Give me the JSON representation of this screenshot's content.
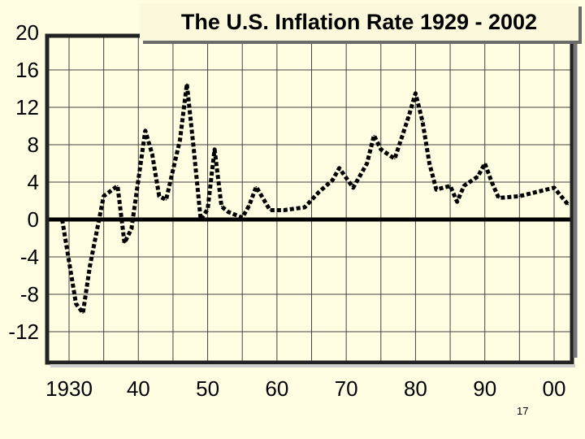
{
  "chart_data": {
    "type": "line",
    "title": "The U.S. Inflation Rate 1929 - 2002",
    "xlabel": "",
    "ylabel": "",
    "yticks": [
      "20",
      "16",
      "12",
      "8",
      "4",
      "0",
      "-4",
      "-8",
      "-12"
    ],
    "ytick_values": [
      20,
      16,
      12,
      8,
      4,
      0,
      -4,
      -8,
      -12
    ],
    "xticks": [
      "1930",
      "40",
      "50",
      "60",
      "70",
      "80",
      "90",
      "00"
    ],
    "xtick_years": [
      1930,
      1940,
      1950,
      1960,
      1970,
      1980,
      1990,
      2000
    ],
    "ylim": [
      -12,
      20
    ],
    "xlim": [
      1926,
      2004
    ],
    "grid": true,
    "line_style": "dashed",
    "series": [
      {
        "name": "",
        "x": [
          1929,
          1931,
          1932,
          1933,
          1935,
          1937,
          1938,
          1939,
          1941,
          1942,
          1943,
          1944,
          1946,
          1947,
          1948,
          1949,
          1950,
          1951,
          1952,
          1953,
          1955,
          1956,
          1957,
          1959,
          1961,
          1963,
          1964,
          1966,
          1968,
          1969,
          1971,
          1973,
          1974,
          1975,
          1977,
          1979,
          1980,
          1981,
          1982,
          1983,
          1985,
          1986,
          1987,
          1989,
          1990,
          1991,
          1992,
          1995,
          2000,
          2002
        ],
        "y": [
          0,
          -9,
          -10,
          -5,
          2.5,
          3.6,
          -2.5,
          -1,
          9.5,
          7,
          2.5,
          2.1,
          8.5,
          14.5,
          7.5,
          0,
          1.1,
          7.5,
          1.4,
          0.8,
          0.2,
          1.5,
          3.5,
          1,
          1,
          1.2,
          1.3,
          2.9,
          4.2,
          5.5,
          3.4,
          6,
          9,
          7.5,
          6.5,
          11,
          13.5,
          10.5,
          6,
          3.2,
          3.6,
          1.9,
          3.6,
          4.6,
          6,
          4,
          2.3,
          2.5,
          3.4,
          1.6
        ]
      }
    ]
  },
  "footer": {
    "page_number": "17"
  }
}
